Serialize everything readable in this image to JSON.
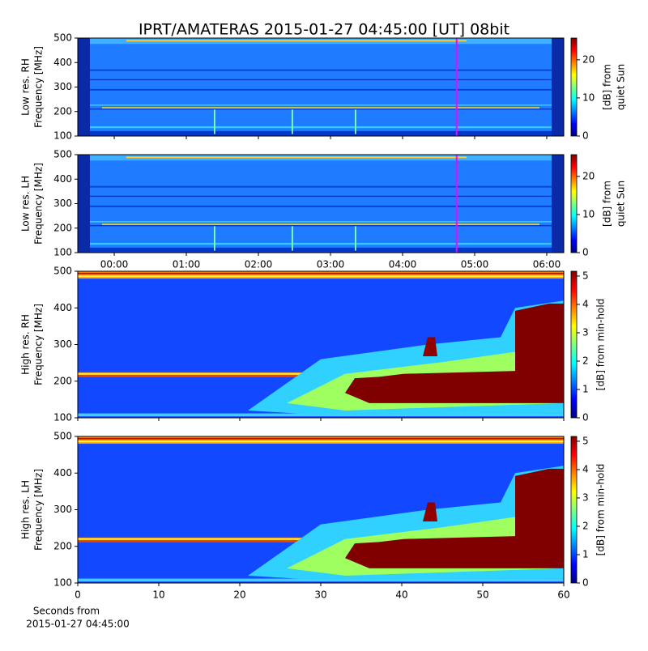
{
  "title": "IPRT/AMATERAS 2015-01-27 04:45:00 [UT]   08bit",
  "chart_data": [
    {
      "type": "heatmap",
      "ylabel": [
        "Low res. RH",
        "Frequency [MHz]"
      ],
      "ylim": [
        100,
        500
      ],
      "yticks": [
        100,
        200,
        300,
        400,
        500
      ],
      "xlim": [
        -0.506,
        6.236
      ],
      "marker_x": 4.75,
      "marker_color": "#ff00ff",
      "colorbar": {
        "label": [
          "[dB] from",
          "quiet Sun"
        ],
        "colormap": "jet",
        "lim": [
          0,
          25.7
        ],
        "ticks": [
          0,
          10,
          20
        ]
      }
    },
    {
      "type": "heatmap",
      "ylabel": [
        "Low res. LH",
        "Frequency [MHz]"
      ],
      "ylim": [
        100,
        500
      ],
      "yticks": [
        100,
        200,
        300,
        400,
        500
      ],
      "xlim": [
        -0.506,
        6.236
      ],
      "marker_x": 4.75,
      "marker_color": "#ff00ff",
      "xticks": [
        {
          "value": 0,
          "label": "00:00"
        },
        {
          "value": 1,
          "label": "01:00"
        },
        {
          "value": 2,
          "label": "02:00"
        },
        {
          "value": 3,
          "label": "03:00"
        },
        {
          "value": 4,
          "label": "04:00"
        },
        {
          "value": 5,
          "label": "05:00"
        },
        {
          "value": 6,
          "label": "06:00"
        }
      ],
      "colorbar": {
        "label": [
          "[dB] from",
          "quiet Sun"
        ],
        "colormap": "jet",
        "lim": [
          0,
          25.7
        ],
        "ticks": [
          0,
          10,
          20
        ]
      }
    },
    {
      "type": "heatmap",
      "ylabel": [
        "High res. RH",
        "Frequency [MHz]"
      ],
      "ylim": [
        100,
        500
      ],
      "yticks": [
        100,
        200,
        300,
        400,
        500
      ],
      "xlim": [
        0,
        60
      ],
      "colorbar": {
        "label": [
          "[dB] from min-hold"
        ],
        "colormap": "jet",
        "lim": [
          0,
          5.17
        ],
        "ticks": [
          0,
          1,
          2,
          3,
          4,
          5
        ]
      }
    },
    {
      "type": "heatmap",
      "ylabel": [
        "High res. LH",
        "Frequency [MHz]"
      ],
      "ylim": [
        100,
        500
      ],
      "yticks": [
        100,
        200,
        300,
        400,
        500
      ],
      "xlim": [
        0,
        60
      ],
      "xticks": [
        0,
        10,
        20,
        30,
        40,
        50,
        60
      ],
      "xlabel": [
        "Seconds from",
        "2015-01-27 04:45:00"
      ],
      "colorbar": {
        "label": [
          "[dB] from min-hold"
        ],
        "colormap": "jet",
        "lim": [
          0,
          5.17
        ],
        "ticks": [
          0,
          1,
          2,
          3,
          4,
          5
        ]
      }
    }
  ]
}
